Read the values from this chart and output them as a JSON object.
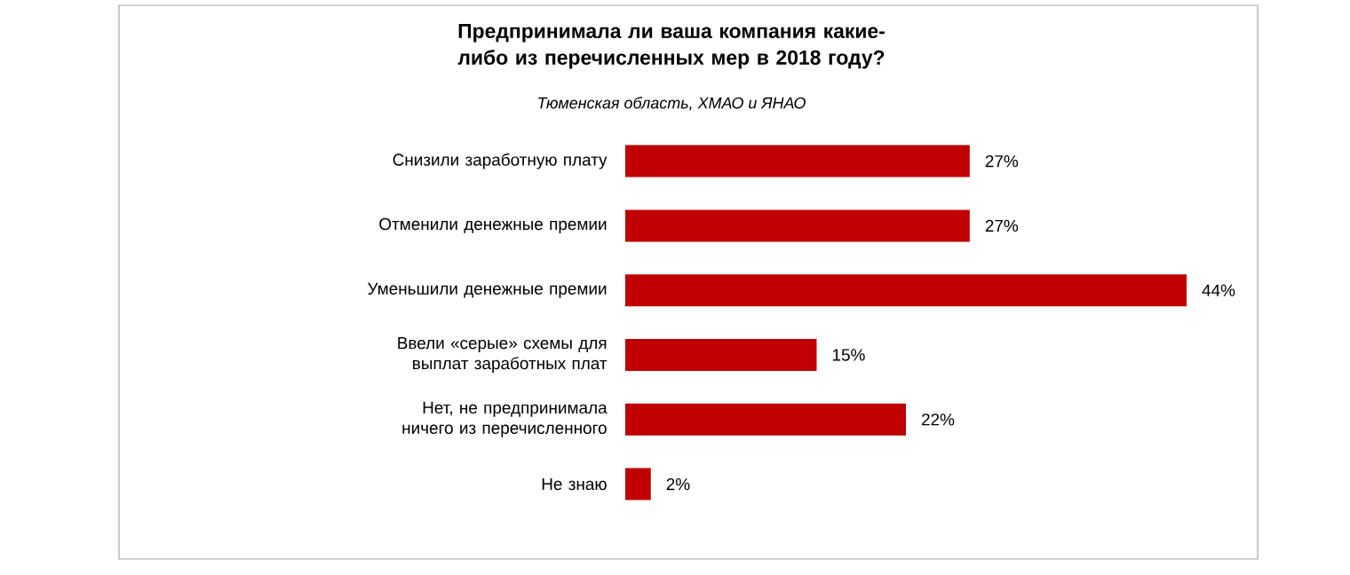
{
  "chart_data": {
    "type": "bar",
    "orientation": "horizontal",
    "title": "Предпринимала ли ваша компания какие-либо из перечисленных мер в 2018 году?",
    "subtitle": "Тюменская область, ХМАО и ЯНАО",
    "categories": [
      "Снизили заработную плату",
      "Отменили денежные премии",
      "Уменьшили денежные премии",
      "Ввели «серые» схемы для выплат заработных плат",
      "Нет, не предпринимала ничего из перечисленного",
      "Не знаю"
    ],
    "values": [
      27,
      27,
      44,
      15,
      22,
      2
    ],
    "value_labels": [
      "27%",
      "27%",
      "44%",
      "15%",
      "22%",
      "2%"
    ],
    "color": "#c00000"
  }
}
